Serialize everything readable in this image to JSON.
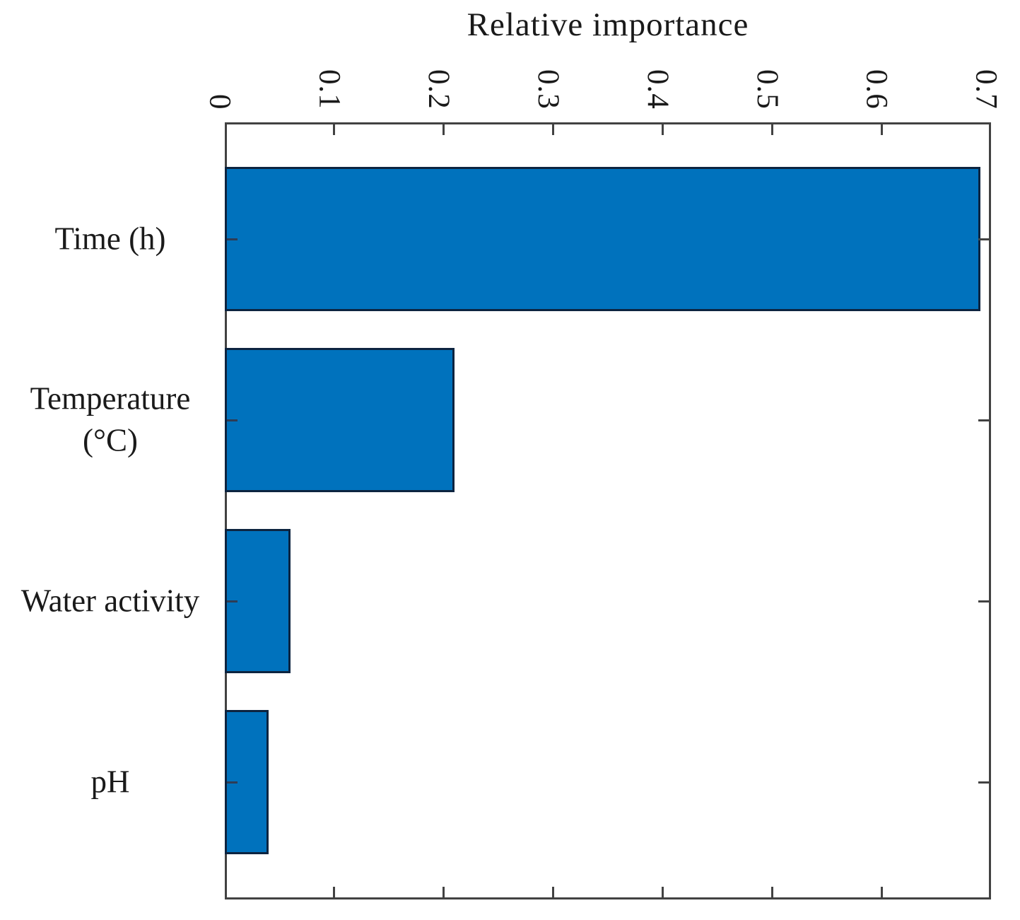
{
  "chart_data": {
    "type": "bar",
    "orientation": "horizontal",
    "xlabel": "Relative importance",
    "categories": [
      "Time (h)",
      "Temperature\n(°C)",
      "Water activity",
      "pH"
    ],
    "values": [
      0.69,
      0.21,
      0.06,
      0.04
    ],
    "xlim": [
      0,
      0.7
    ],
    "x_tick_labels": [
      "0",
      "0.1",
      "0.2",
      "0.3",
      "0.4",
      "0.5",
      "0.6",
      "0.7"
    ],
    "x_tick_label_rotation_deg": 90,
    "grid": false,
    "tick_direction": "in",
    "legend": "none",
    "bar_color": "#0072BD",
    "bar_edge_color": "#0d2440",
    "axis_color": "#424242",
    "text_color": "#1a1a1a"
  }
}
